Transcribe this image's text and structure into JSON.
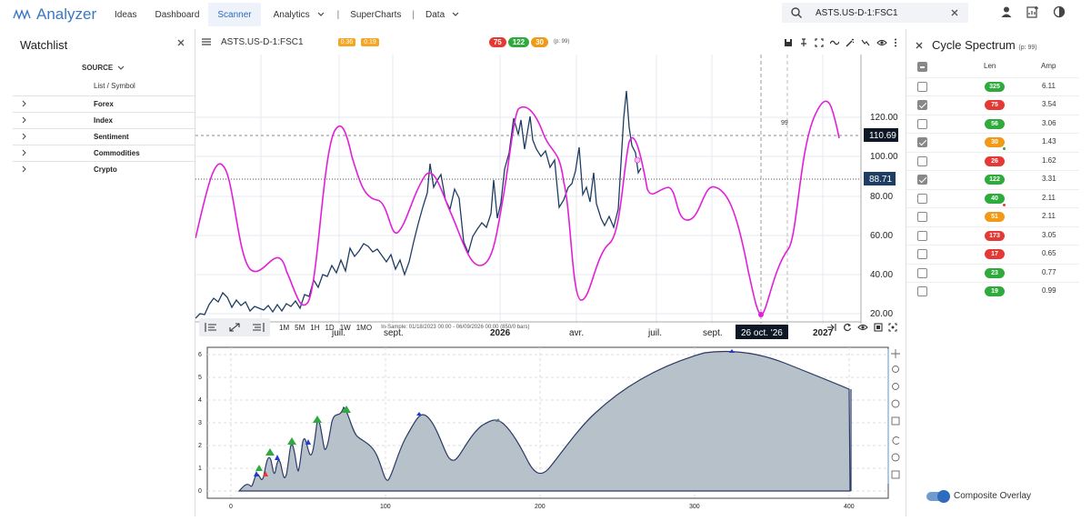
{
  "app": {
    "name": "Analyzer"
  },
  "nav": {
    "items": [
      "Ideas",
      "Dashboard",
      "Scanner",
      "Analytics",
      "SuperCharts",
      "Data"
    ],
    "active": "Scanner"
  },
  "search": {
    "value": "ASTS.US-D-1:FSC1"
  },
  "watchlist": {
    "title": "Watchlist",
    "source_label": "SOURCE",
    "list_header": "List / Symbol",
    "groups": [
      "Forex",
      "Index",
      "Sentiment",
      "Commodities",
      "Crypto"
    ]
  },
  "chart": {
    "symbol": "ASTS.US-D-1:FSC1",
    "tag1": "0.36",
    "tag2": "0.19",
    "pills": [
      {
        "v": "75",
        "c": "#e53935"
      },
      {
        "v": "122",
        "c": "#2eab3c"
      },
      {
        "v": "30",
        "c": "#f09a17"
      }
    ],
    "p_label": "(p: 99)",
    "price_labels": [
      "120.00",
      "100.00",
      "80.00",
      "60.00",
      "40.00",
      "20.00"
    ],
    "current_price": "110.69",
    "last_price": "88.71",
    "marker_label": "99",
    "x_labels": [
      "avr.",
      "juil.",
      "sept.",
      "2026",
      "avr.",
      "juil.",
      "sept.",
      "26 oct. '26",
      "2027"
    ]
  },
  "toolbar2": {
    "timeframes": [
      "1M",
      "5M",
      "1H",
      "1D",
      "1W",
      "1MO"
    ],
    "insample": "In-Sample: 01/18/2023 00:00 - 06/09/2026 00:00 (850/0 bars)"
  },
  "spectrum": {
    "y_labels": [
      "0",
      "1",
      "2",
      "3",
      "4",
      "5",
      "6"
    ],
    "x_labels": [
      "0",
      "100",
      "200",
      "300",
      "400"
    ]
  },
  "cycle_spectrum": {
    "title": "Cycle Spectrum",
    "sub": "(p: 99)",
    "col_len": "Len",
    "col_amp": "Amp",
    "rows": [
      {
        "len": "325",
        "amp": "6.11",
        "color": "#2eab3c",
        "checked": false
      },
      {
        "len": "75",
        "amp": "3.54",
        "color": "#e53935",
        "checked": true
      },
      {
        "len": "56",
        "amp": "3.06",
        "color": "#2eab3c",
        "checked": false
      },
      {
        "len": "30",
        "amp": "1.43",
        "color": "#f09a17",
        "checked": true
      },
      {
        "len": "26",
        "amp": "1.62",
        "color": "#e53935",
        "checked": false
      },
      {
        "len": "122",
        "amp": "3.31",
        "color": "#2eab3c",
        "checked": true
      },
      {
        "len": "40",
        "amp": "2.11",
        "color": "#2eab3c",
        "checked": false
      },
      {
        "len": "51",
        "amp": "2.11",
        "color": "#f09a17",
        "checked": false
      },
      {
        "len": "173",
        "amp": "3.05",
        "color": "#e53935",
        "checked": false
      },
      {
        "len": "17",
        "amp": "0.65",
        "color": "#e53935",
        "checked": false
      },
      {
        "len": "23",
        "amp": "0.77",
        "color": "#2eab3c",
        "checked": false
      },
      {
        "len": "19",
        "amp": "0.99",
        "color": "#2eab3c",
        "checked": false
      }
    ],
    "overlay_label": "Composite Overlay"
  }
}
